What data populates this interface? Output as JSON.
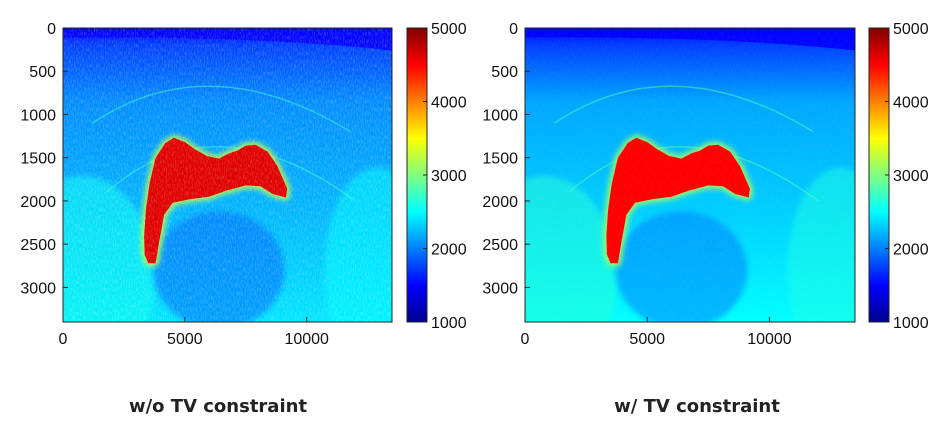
{
  "chart_data": [
    {
      "type": "heatmap",
      "caption": "w/o TV constraint",
      "x_range": [
        0,
        13500
      ],
      "y_range": [
        0,
        3400
      ],
      "y_reversed": true,
      "x_ticks": [
        0,
        5000,
        10000
      ],
      "y_ticks": [
        0,
        500,
        1000,
        1500,
        2000,
        2500,
        3000
      ],
      "colorbar": {
        "range": [
          1000,
          5000
        ],
        "ticks": [
          1000,
          2000,
          3000,
          4000,
          5000
        ],
        "colormap": "jet"
      },
      "background_value": 2200,
      "top_layer_value": 1500,
      "salt_body_value": 4600,
      "noisy": true
    },
    {
      "type": "heatmap",
      "caption": "w/ TV constraint",
      "x_range": [
        0,
        13500
      ],
      "y_range": [
        0,
        3400
      ],
      "y_reversed": true,
      "x_ticks": [
        0,
        5000,
        10000
      ],
      "y_ticks": [
        0,
        500,
        1000,
        1500,
        2000,
        2500,
        3000
      ],
      "colorbar": {
        "range": [
          1000,
          5000
        ],
        "ticks": [
          1000,
          2000,
          3000,
          4000,
          5000
        ],
        "colormap": "jet"
      },
      "background_value": 2300,
      "top_layer_value": 1500,
      "salt_body_value": 4500,
      "noisy": false
    }
  ]
}
